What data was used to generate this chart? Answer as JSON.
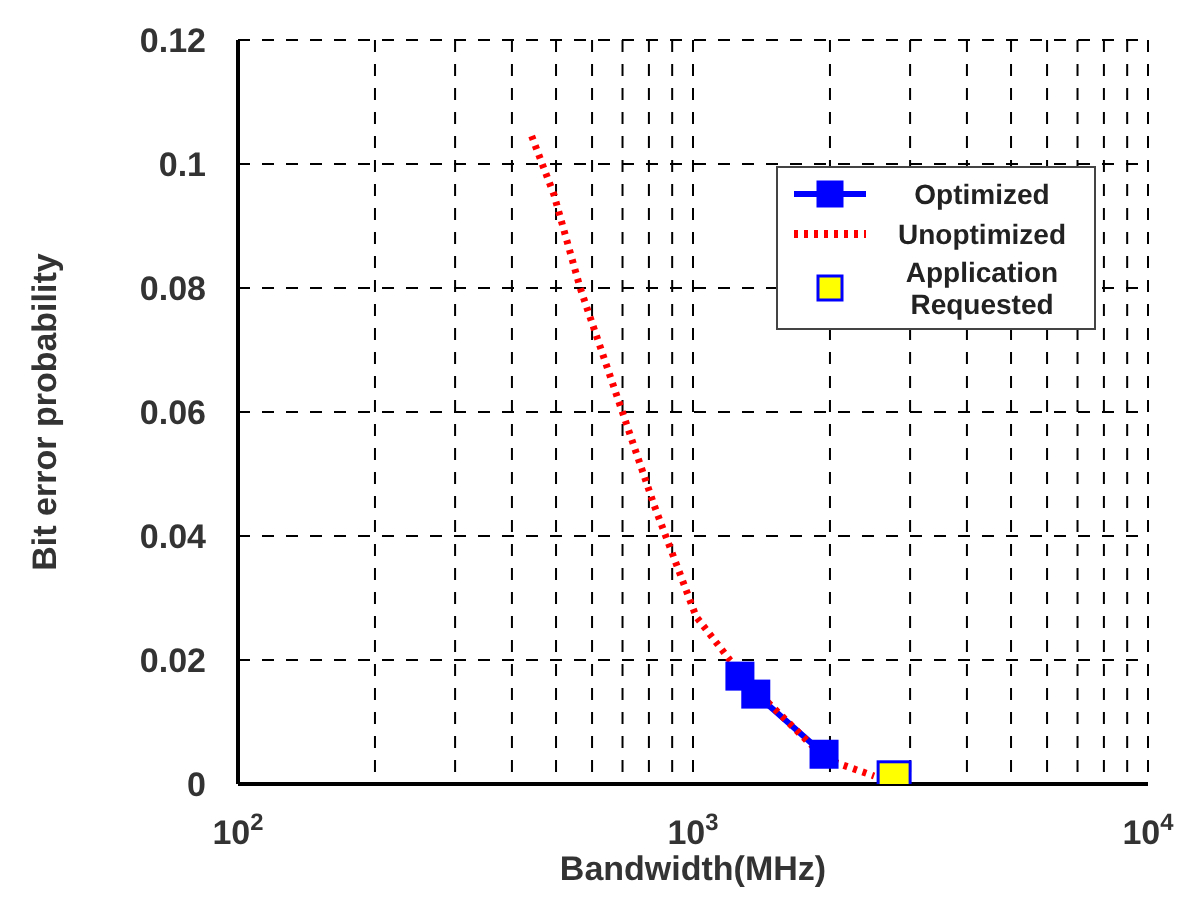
{
  "chart_data": {
    "type": "line",
    "xlabel": "Bandwidth(MHz)",
    "ylabel": "Bit error probability",
    "log": "x",
    "xlim": [
      100,
      10000
    ],
    "ylim": [
      0,
      0.12
    ],
    "xticks": [
      {
        "value": 100,
        "label": "10$^{2}$"
      },
      {
        "value": 200,
        "label": null
      },
      {
        "value": 300,
        "label": null
      },
      {
        "value": 400,
        "label": null
      },
      {
        "value": 500,
        "label": null
      },
      {
        "value": 600,
        "label": null
      },
      {
        "value": 700,
        "label": null
      },
      {
        "value": 800,
        "label": null
      },
      {
        "value": 900,
        "label": null
      },
      {
        "value": 1000,
        "label": "10$^{3}$"
      },
      {
        "value": 2000,
        "label": null
      },
      {
        "value": 3000,
        "label": null
      },
      {
        "value": 4000,
        "label": null
      },
      {
        "value": 5000,
        "label": null
      },
      {
        "value": 6000,
        "label": null
      },
      {
        "value": 7000,
        "label": null
      },
      {
        "value": 8000,
        "label": null
      },
      {
        "value": 9000,
        "label": null
      },
      {
        "value": 10000,
        "label": "10$^{4}$"
      }
    ],
    "yticks": [
      0,
      0.02,
      0.04,
      0.06,
      0.08,
      0.1,
      0.12
    ],
    "grid": true,
    "legend": "top right",
    "series": [
      {
        "name": "Optimized",
        "color": "#0000ff",
        "marker": "square",
        "line_style": "solid",
        "x": [
          1268,
          1374,
          1941
        ],
        "values": [
          0.0174,
          0.0145,
          0.0048
        ]
      },
      {
        "name": "Unoptimized",
        "color": "#ff0000",
        "marker": "none",
        "line_style": "dotted",
        "x": [
          442,
          495,
          565,
          692,
          821,
          1016,
          1205,
          1445,
          1960,
          2500
        ],
        "values": [
          0.1045,
          0.095,
          0.08,
          0.061,
          0.045,
          0.027,
          0.02,
          0.0135,
          0.004,
          0.0013
        ]
      },
      {
        "name": "Application Requested",
        "type": "scatter",
        "color": "#ffff00",
        "marker": "square",
        "x": [
          2767
        ],
        "values": [
          0.001
        ]
      }
    ]
  }
}
